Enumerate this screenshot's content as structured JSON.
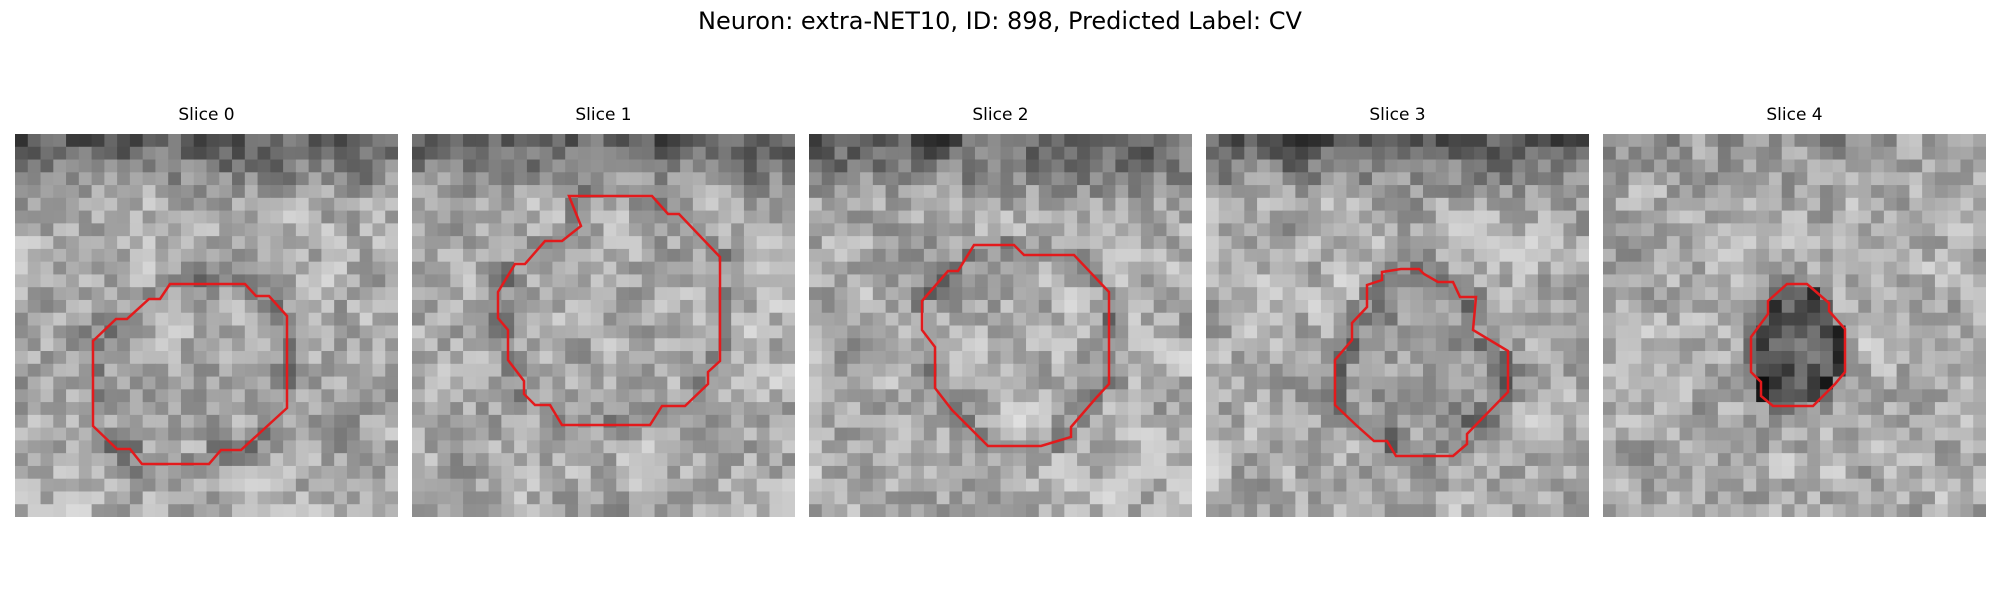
{
  "figure": {
    "title": "Neuron: extra-NET10, ID: 898, Predicted Label: CV",
    "contour_color": "#e31a1c"
  },
  "panels": [
    {
      "title": "Slice 0"
    },
    {
      "title": "Slice 1"
    },
    {
      "title": "Slice 2"
    },
    {
      "title": "Slice 3"
    },
    {
      "title": "Slice 4"
    }
  ]
}
